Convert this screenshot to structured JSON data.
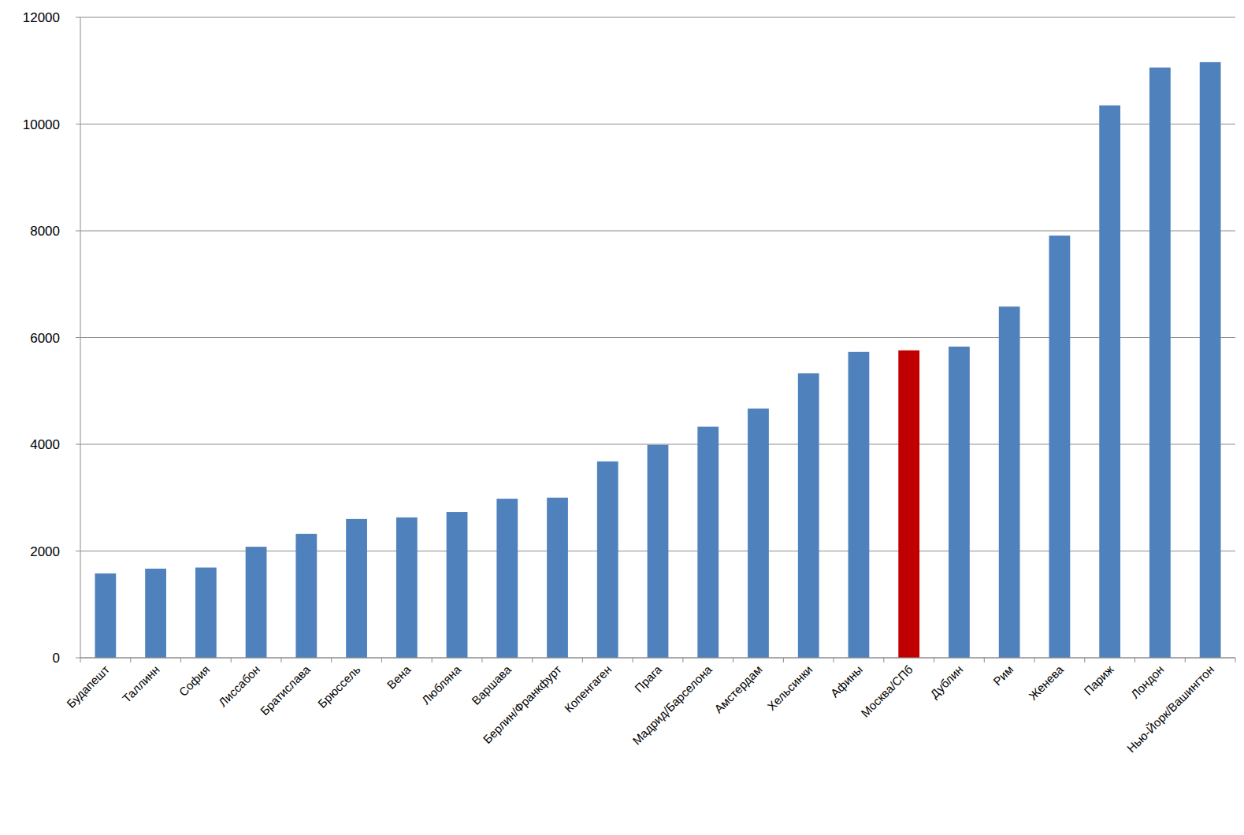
{
  "chart_data": {
    "type": "bar",
    "categories": [
      "Будапешт",
      "Таллинн",
      "София",
      "Лиссабон",
      "Братислава",
      "Брюссель",
      "Вена",
      "Любляна",
      "Варшава",
      "Берлин/Франкфурт",
      "Копенгаген",
      "Прага",
      "Мадрид/Барселона",
      "Амстердам",
      "Хельсинки",
      "Афины",
      "Москва/СПб",
      "Дублин",
      "Рим",
      "Женева",
      "Париж",
      "Лондон",
      "Нью-Йорк/Вашингтон"
    ],
    "values": [
      1580,
      1670,
      1690,
      2080,
      2320,
      2600,
      2630,
      2730,
      2980,
      3000,
      3680,
      3990,
      4330,
      4670,
      5330,
      5730,
      5760,
      5830,
      6580,
      7910,
      10350,
      11060,
      11160
    ],
    "colors": [
      "#4f81bd",
      "#4f81bd",
      "#4f81bd",
      "#4f81bd",
      "#4f81bd",
      "#4f81bd",
      "#4f81bd",
      "#4f81bd",
      "#4f81bd",
      "#4f81bd",
      "#4f81bd",
      "#4f81bd",
      "#4f81bd",
      "#4f81bd",
      "#4f81bd",
      "#4f81bd",
      "#c00000",
      "#4f81bd",
      "#4f81bd",
      "#4f81bd",
      "#4f81bd",
      "#4f81bd",
      "#4f81bd"
    ],
    "ylim": [
      0,
      12000
    ],
    "yticks": [
      0,
      2000,
      4000,
      6000,
      8000,
      10000,
      12000
    ],
    "grid": true
  }
}
